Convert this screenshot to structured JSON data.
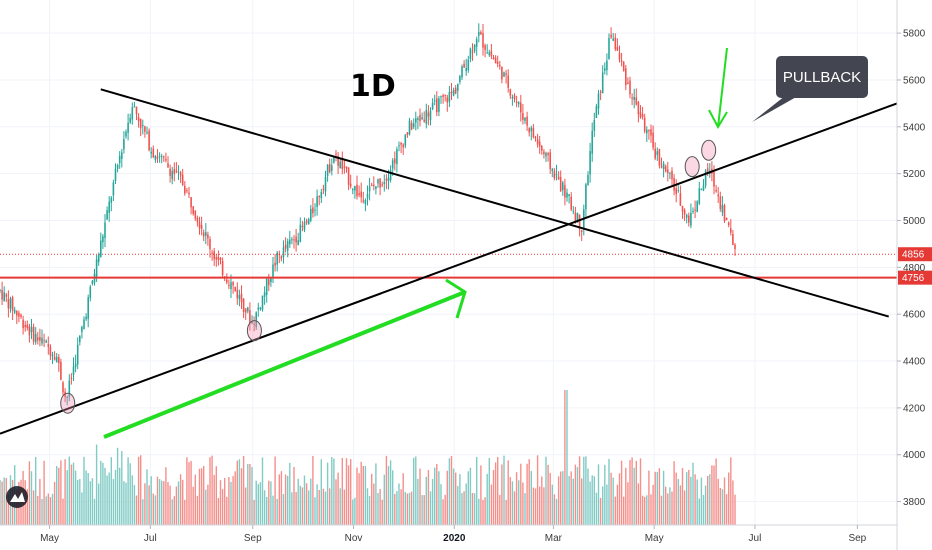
{
  "chart_data": {
    "type": "candlestick",
    "timeframe_label": "1D",
    "x_ticks": [
      "May",
      "Jul",
      "Sep",
      "Nov",
      "2020",
      "Mar",
      "May",
      "Jul",
      "Sep"
    ],
    "y_ticks": [
      "3800",
      "4000",
      "4200",
      "4400",
      "4600",
      "4800",
      "5000",
      "5200",
      "5400",
      "5600",
      "5800"
    ],
    "y_range": [
      3700,
      5920
    ],
    "price_levels": [
      {
        "label": "4856",
        "value": 4856,
        "style": "dotted",
        "color": "#e53935"
      },
      {
        "label": "4756",
        "value": 4756,
        "style": "solid",
        "color": "#e53935"
      }
    ],
    "price_path": [
      {
        "date": "2019-04-01",
        "value": 4700
      },
      {
        "date": "2019-04-20",
        "value": 4520
      },
      {
        "date": "2019-05-05",
        "value": 4430
      },
      {
        "date": "2019-05-11",
        "value": 4230
      },
      {
        "date": "2019-06-01",
        "value": 4900
      },
      {
        "date": "2019-06-12",
        "value": 5260
      },
      {
        "date": "2019-06-20",
        "value": 5500
      },
      {
        "date": "2019-07-02",
        "value": 5300
      },
      {
        "date": "2019-07-20",
        "value": 5170
      },
      {
        "date": "2019-08-10",
        "value": 4830
      },
      {
        "date": "2019-08-25",
        "value": 4660
      },
      {
        "date": "2019-09-01",
        "value": 4560
      },
      {
        "date": "2019-09-15",
        "value": 4830
      },
      {
        "date": "2019-10-05",
        "value": 5000
      },
      {
        "date": "2019-10-20",
        "value": 5280
      },
      {
        "date": "2019-11-05",
        "value": 5100
      },
      {
        "date": "2019-11-20",
        "value": 5180
      },
      {
        "date": "2019-12-05",
        "value": 5400
      },
      {
        "date": "2020-01-01",
        "value": 5550
      },
      {
        "date": "2020-01-15",
        "value": 5800
      },
      {
        "date": "2020-01-30",
        "value": 5630
      },
      {
        "date": "2020-02-15",
        "value": 5400
      },
      {
        "date": "2020-03-08",
        "value": 5120
      },
      {
        "date": "2020-03-18",
        "value": 4970
      },
      {
        "date": "2020-03-25",
        "value": 5400
      },
      {
        "date": "2020-04-05",
        "value": 5800
      },
      {
        "date": "2020-04-15",
        "value": 5580
      },
      {
        "date": "2020-05-01",
        "value": 5300
      },
      {
        "date": "2020-05-12",
        "value": 5160
      },
      {
        "date": "2020-05-22",
        "value": 5000
      },
      {
        "date": "2020-06-03",
        "value": 5220
      },
      {
        "date": "2020-06-10",
        "value": 5080
      },
      {
        "date": "2020-06-20",
        "value": 4856
      }
    ],
    "trendlines": [
      {
        "name": "descending-trendline",
        "color": "#000000",
        "from": {
          "date": "2019-06-01",
          "value": 5560
        },
        "to": {
          "date": "2020-09-20",
          "value": 4590
        }
      },
      {
        "name": "ascending-trendline",
        "color": "#000000",
        "from": {
          "date": "2019-04-01",
          "value": 4090
        },
        "to": {
          "date": "2020-09-25",
          "value": 5500
        }
      }
    ],
    "touch_markers": [
      {
        "date": "2019-05-12",
        "value": 4220
      },
      {
        "date": "2019-09-02",
        "value": 4530
      },
      {
        "date": "2020-05-24",
        "value": 5230
      },
      {
        "date": "2020-06-03",
        "value": 5300
      }
    ],
    "annotations": {
      "callout_text": "PULLBACK"
    },
    "volume_spike": {
      "date": "2020-03-09"
    },
    "colors": {
      "up": "#26a69a",
      "down": "#ef5350",
      "volume_up": "#80cbc4",
      "volume_down": "#f48f8b",
      "arrow": "#22dd22"
    }
  }
}
